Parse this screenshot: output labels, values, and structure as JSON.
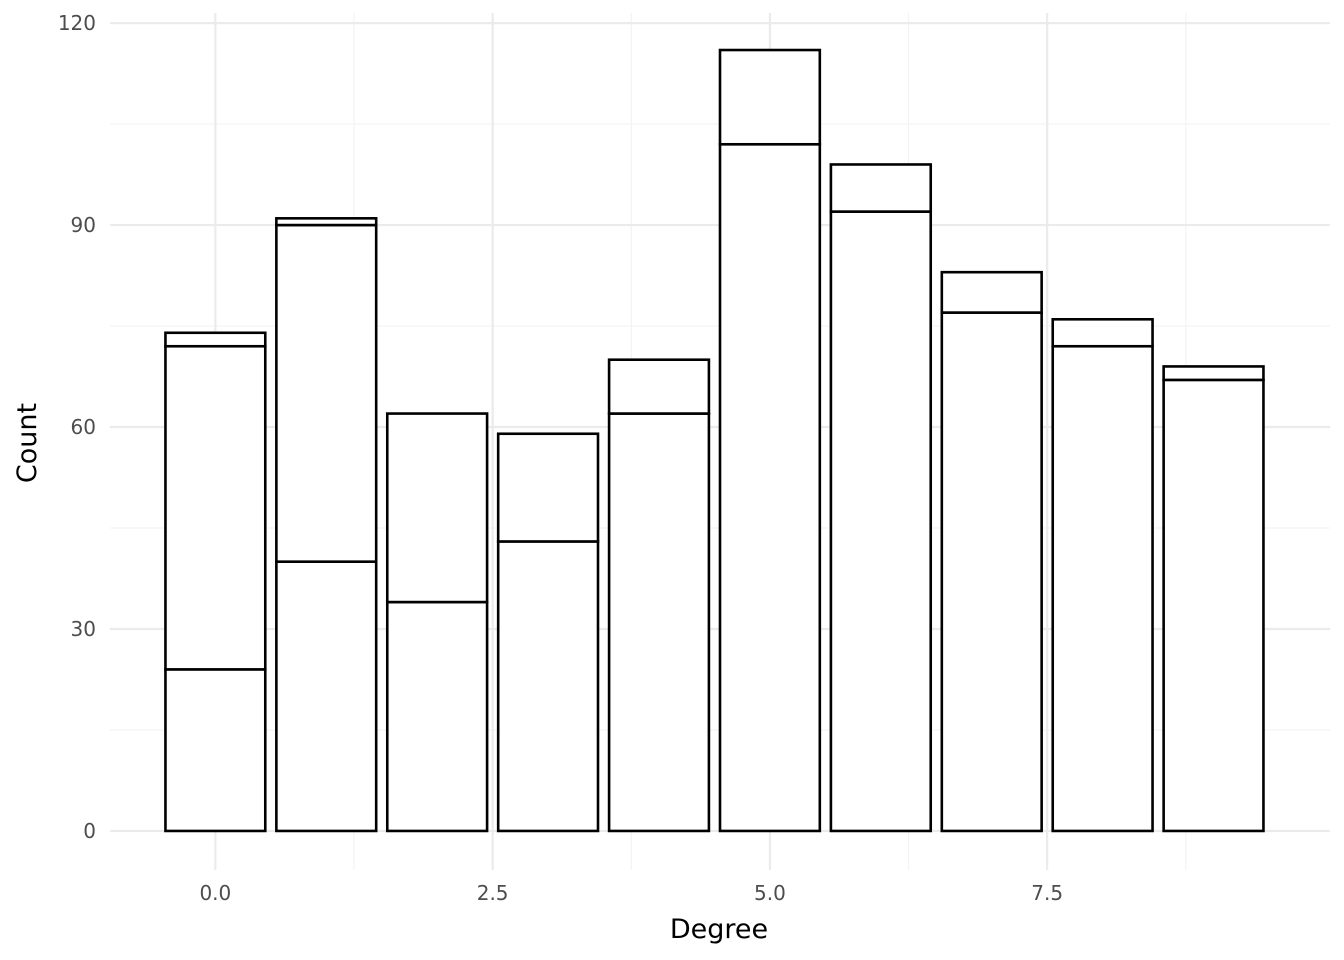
{
  "chart_data": {
    "type": "bar",
    "stacked": true,
    "x": [
      0,
      1,
      2,
      3,
      4,
      5,
      6,
      7,
      8,
      9
    ],
    "segment_tops": [
      [
        24,
        72,
        74
      ],
      [
        40,
        90,
        91
      ],
      [
        34,
        62
      ],
      [
        43,
        59
      ],
      [
        62,
        70
      ],
      [
        102,
        116
      ],
      [
        92,
        99
      ],
      [
        77,
        83
      ],
      [
        72,
        76
      ],
      [
        67,
        69
      ]
    ],
    "totals": [
      74,
      91,
      62,
      59,
      70,
      116,
      99,
      83,
      76,
      69
    ],
    "xlabel": "Degree",
    "ylabel": "Count",
    "xlim": [
      -0.95,
      10.05
    ],
    "ylim": [
      -5.8,
      121.5
    ],
    "x_ticks": [
      0,
      2.5,
      5,
      7.5
    ],
    "x_tick_labels": [
      "0.0",
      "2.5",
      "5.0",
      "7.5"
    ],
    "y_ticks": [
      0,
      30,
      60,
      90,
      120
    ],
    "y_tick_labels": [
      "0",
      "30",
      "60",
      "90",
      "120"
    ],
    "fill_color": "#ffffff",
    "outline_color": "#000000",
    "grid": true,
    "legend": "none"
  }
}
